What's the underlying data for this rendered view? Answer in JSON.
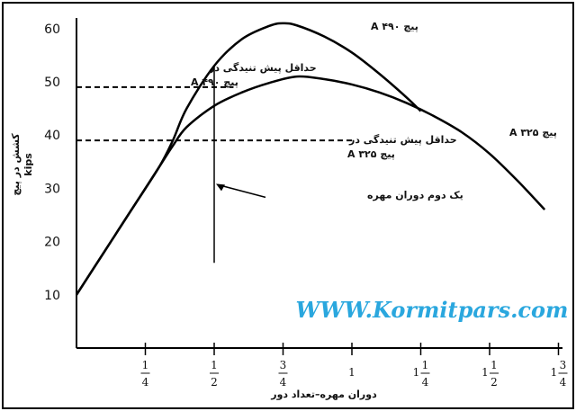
{
  "chart_data": {
    "type": "line",
    "title": "",
    "xlabel": "دوران مهره–تعداد دور",
    "ylabel": "کشش در پیچ kips",
    "xlim": [
      0,
      1.75
    ],
    "ylim": [
      0,
      60
    ],
    "y_ticks": [
      "10",
      "20",
      "30",
      "40",
      "50",
      "60"
    ],
    "x_ticks": [
      {
        "whole": "",
        "num": "1",
        "den": "4"
      },
      {
        "whole": "",
        "num": "1",
        "den": "2"
      },
      {
        "whole": "",
        "num": "3",
        "den": "4"
      },
      {
        "whole": "1",
        "num": "",
        "den": ""
      },
      {
        "whole": "1",
        "num": "1",
        "den": "4"
      },
      {
        "whole": "1",
        "num": "1",
        "den": "2"
      },
      {
        "whole": "1",
        "num": "3",
        "den": "4"
      }
    ],
    "series": [
      {
        "name": "پیچ A ۴۹۰",
        "x": [
          0,
          0.1,
          0.2,
          0.3,
          0.35,
          0.4,
          0.5,
          0.6,
          0.7,
          0.75,
          0.8,
          0.9,
          1.0,
          1.1,
          1.2,
          1.25
        ],
        "y": [
          10,
          18,
          26,
          34,
          39,
          45,
          53,
          58,
          60.5,
          61,
          60.6,
          58.5,
          55.5,
          51.5,
          47,
          44.5
        ]
      },
      {
        "name": "پیچ A ۳۲۵",
        "x": [
          0,
          0.1,
          0.2,
          0.3,
          0.35,
          0.4,
          0.5,
          0.6,
          0.7,
          0.8,
          0.9,
          1.0,
          1.1,
          1.2,
          1.3,
          1.4,
          1.5,
          1.6,
          1.7
        ],
        "y": [
          10,
          18,
          26,
          34,
          38,
          41.5,
          45.5,
          48,
          49.8,
          51,
          50.5,
          49.5,
          48,
          46,
          43.5,
          40.5,
          36.5,
          31.5,
          26
        ]
      }
    ],
    "reference_lines": [
      {
        "y": 49,
        "x_end": 0.57,
        "label_line1": "حداقل پیش تنیدگی در",
        "label_line2": "پیچ A ۴۹۰"
      },
      {
        "y": 39,
        "x_end": 1.0,
        "label_line1": "حداقل پیش تنیدگی در",
        "label_line2": "پیچ A ۳۲۵"
      }
    ],
    "marker": {
      "x": 0.5,
      "y_bottom": 16,
      "y_top": 53,
      "arrow_y": 30,
      "label": "یک دوم دوران مهره"
    }
  },
  "watermark": "WWW.Kormitpars.com",
  "colors": {
    "curve": "#000000",
    "watermark": "#2aa7de"
  }
}
